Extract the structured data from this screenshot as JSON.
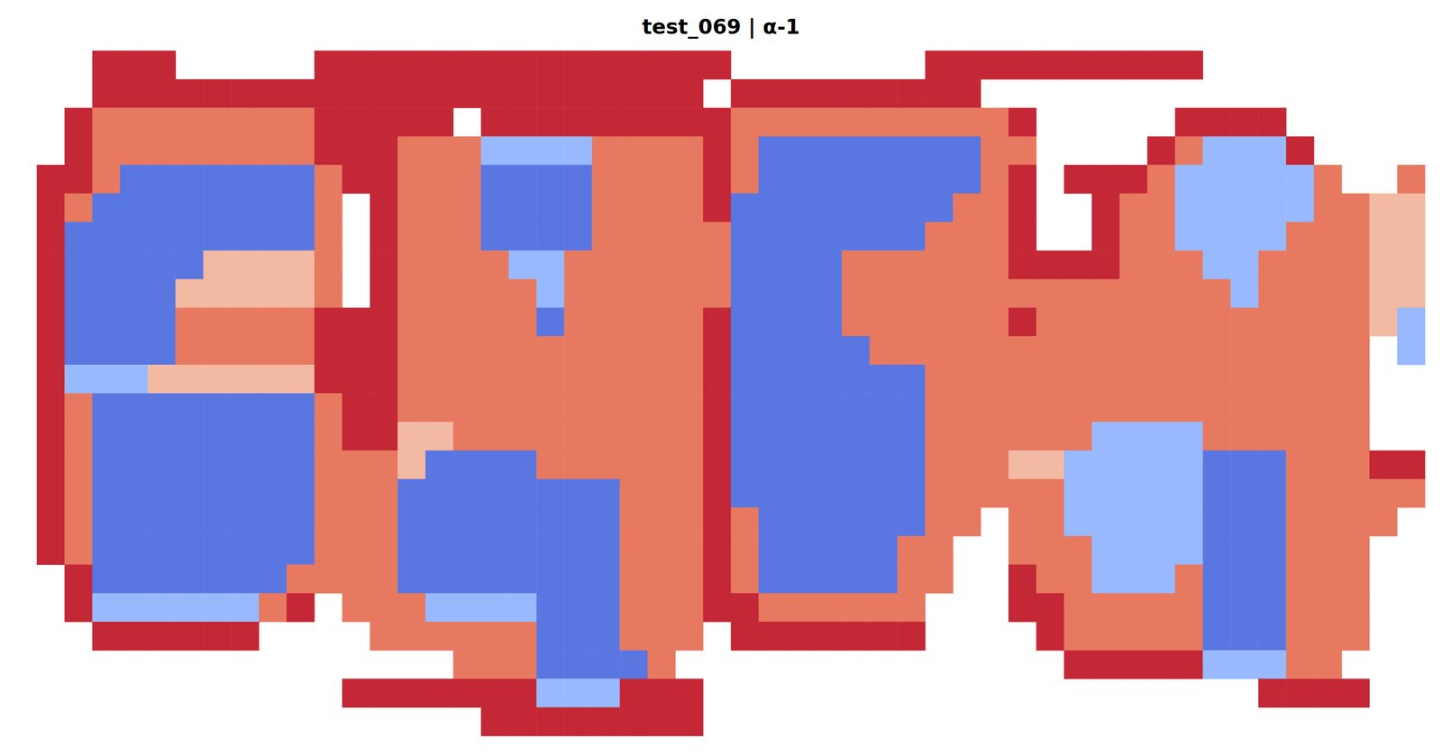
{
  "chart_data": {
    "type": "heatmap",
    "title": "test_069 | α-1",
    "zlim": [
      0,
      1
    ],
    "grid": false,
    "tick_labels": false,
    "cells": [
      [
        null,
        null,
        0.95,
        0.95,
        0.95,
        null,
        null,
        null,
        null,
        null,
        0.95,
        0.95,
        0.95,
        0.95,
        0.95,
        0.95,
        0.95,
        0.95,
        0.95,
        0.95,
        0.95,
        0.95,
        0.95,
        0.95,
        0.95,
        null,
        null,
        null,
        null,
        null,
        null,
        null,
        0.95,
        0.95,
        0.95,
        0.95,
        0.95,
        0.95,
        0.95,
        0.95,
        0.95,
        0.95,
        null,
        null,
        null,
        null,
        null,
        null,
        null,
        null
      ],
      [
        null,
        null,
        0.95,
        0.95,
        0.95,
        0.95,
        0.95,
        0.95,
        0.95,
        0.95,
        0.95,
        0.95,
        0.95,
        0.95,
        0.95,
        0.95,
        0.95,
        0.95,
        0.95,
        0.95,
        0.95,
        0.95,
        0.95,
        0.95,
        null,
        0.95,
        0.95,
        0.95,
        0.95,
        0.95,
        0.95,
        0.95,
        0.95,
        0.95,
        null,
        null,
        null,
        null,
        null,
        null,
        null,
        null,
        null,
        null,
        null,
        null,
        null,
        null,
        null,
        null
      ],
      [
        null,
        0.95,
        0.82,
        0.82,
        0.82,
        0.82,
        0.82,
        0.82,
        0.82,
        0.82,
        0.95,
        0.95,
        0.95,
        0.95,
        0.95,
        null,
        0.95,
        0.95,
        0.95,
        0.95,
        0.95,
        0.95,
        0.95,
        0.95,
        0.95,
        0.82,
        0.82,
        0.82,
        0.82,
        0.82,
        0.82,
        0.82,
        0.82,
        0.82,
        0.82,
        0.95,
        null,
        null,
        null,
        null,
        null,
        0.95,
        0.95,
        0.95,
        0.95,
        null,
        null,
        null,
        null,
        null
      ],
      [
        null,
        0.95,
        0.82,
        0.82,
        0.82,
        0.82,
        0.82,
        0.82,
        0.82,
        0.82,
        0.95,
        0.95,
        0.95,
        0.82,
        0.82,
        0.82,
        0.28,
        0.28,
        0.28,
        0.28,
        0.82,
        0.82,
        0.82,
        0.82,
        0.95,
        0.82,
        0.1,
        0.1,
        0.1,
        0.1,
        0.1,
        0.1,
        0.1,
        0.1,
        0.82,
        0.82,
        null,
        null,
        null,
        null,
        0.95,
        0.82,
        0.28,
        0.28,
        0.28,
        0.95,
        null,
        null,
        null,
        null
      ],
      [
        0.95,
        0.95,
        0.82,
        0.1,
        0.1,
        0.1,
        0.1,
        0.1,
        0.1,
        0.1,
        0.82,
        0.95,
        0.95,
        0.82,
        0.82,
        0.82,
        0.1,
        0.1,
        0.1,
        0.1,
        0.82,
        0.82,
        0.82,
        0.82,
        0.95,
        0.82,
        0.1,
        0.1,
        0.1,
        0.1,
        0.1,
        0.1,
        0.1,
        0.1,
        0.82,
        0.95,
        null,
        0.95,
        0.95,
        0.95,
        0.82,
        0.28,
        0.28,
        0.28,
        0.28,
        0.28,
        0.82,
        null,
        null,
        0.82
      ],
      [
        0.95,
        0.82,
        0.1,
        0.1,
        0.1,
        0.1,
        0.1,
        0.1,
        0.1,
        0.1,
        0.82,
        null,
        0.95,
        0.82,
        0.82,
        0.82,
        0.1,
        0.1,
        0.1,
        0.1,
        0.82,
        0.82,
        0.82,
        0.82,
        0.95,
        0.1,
        0.1,
        0.1,
        0.1,
        0.1,
        0.1,
        0.1,
        0.1,
        0.82,
        0.82,
        0.95,
        null,
        null,
        0.95,
        0.82,
        0.82,
        0.28,
        0.28,
        0.28,
        0.28,
        0.28,
        0.82,
        0.82,
        0.65,
        0.65
      ],
      [
        0.95,
        0.1,
        0.1,
        0.1,
        0.1,
        0.1,
        0.1,
        0.1,
        0.1,
        0.1,
        0.82,
        null,
        0.95,
        0.82,
        0.82,
        0.82,
        0.1,
        0.1,
        0.1,
        0.1,
        0.82,
        0.82,
        0.82,
        0.82,
        0.82,
        0.1,
        0.1,
        0.1,
        0.1,
        0.1,
        0.1,
        0.1,
        0.82,
        0.82,
        0.82,
        0.95,
        null,
        null,
        0.95,
        0.82,
        0.82,
        0.28,
        0.28,
        0.28,
        0.28,
        0.82,
        0.82,
        0.82,
        0.65,
        0.65
      ],
      [
        0.95,
        0.1,
        0.1,
        0.1,
        0.1,
        0.1,
        0.65,
        0.65,
        0.65,
        0.65,
        0.82,
        null,
        0.95,
        0.82,
        0.82,
        0.82,
        0.82,
        0.28,
        0.28,
        0.82,
        0.82,
        0.82,
        0.82,
        0.82,
        0.82,
        0.1,
        0.1,
        0.1,
        0.1,
        0.82,
        0.82,
        0.82,
        0.82,
        0.82,
        0.82,
        0.95,
        0.95,
        0.95,
        0.95,
        0.82,
        0.82,
        0.82,
        0.28,
        0.28,
        0.82,
        0.82,
        0.82,
        0.82,
        0.65,
        0.65
      ],
      [
        0.95,
        0.1,
        0.1,
        0.1,
        0.1,
        0.65,
        0.65,
        0.65,
        0.65,
        0.65,
        0.82,
        null,
        0.95,
        0.82,
        0.82,
        0.82,
        0.82,
        0.82,
        0.28,
        0.82,
        0.82,
        0.82,
        0.82,
        0.82,
        0.82,
        0.1,
        0.1,
        0.1,
        0.1,
        0.82,
        0.82,
        0.82,
        0.82,
        0.82,
        0.82,
        0.82,
        0.82,
        0.82,
        0.82,
        0.82,
        0.82,
        0.82,
        0.82,
        0.28,
        0.82,
        0.82,
        0.82,
        0.82,
        0.65,
        0.65
      ],
      [
        0.95,
        0.1,
        0.1,
        0.1,
        0.1,
        0.82,
        0.82,
        0.82,
        0.82,
        0.82,
        0.95,
        0.95,
        0.95,
        0.82,
        0.82,
        0.82,
        0.82,
        0.82,
        0.1,
        0.82,
        0.82,
        0.82,
        0.82,
        0.82,
        0.95,
        0.1,
        0.1,
        0.1,
        0.1,
        0.82,
        0.82,
        0.82,
        0.82,
        0.82,
        0.82,
        0.95,
        0.82,
        0.82,
        0.82,
        0.82,
        0.82,
        0.82,
        0.82,
        0.82,
        0.82,
        0.82,
        0.82,
        0.82,
        0.65,
        0.28
      ],
      [
        0.95,
        0.1,
        0.1,
        0.1,
        0.1,
        0.82,
        0.82,
        0.82,
        0.82,
        0.82,
        0.95,
        0.95,
        0.95,
        0.82,
        0.82,
        0.82,
        0.82,
        0.82,
        0.82,
        0.82,
        0.82,
        0.82,
        0.82,
        0.82,
        0.95,
        0.1,
        0.1,
        0.1,
        0.1,
        0.1,
        0.82,
        0.82,
        0.82,
        0.82,
        0.82,
        0.82,
        0.82,
        0.82,
        0.82,
        0.82,
        0.82,
        0.82,
        0.82,
        0.82,
        0.82,
        0.82,
        0.82,
        0.82,
        null,
        0.28
      ],
      [
        0.95,
        0.28,
        0.28,
        0.28,
        0.65,
        0.65,
        0.65,
        0.65,
        0.65,
        0.65,
        0.95,
        0.95,
        0.95,
        0.82,
        0.82,
        0.82,
        0.82,
        0.82,
        0.82,
        0.82,
        0.82,
        0.82,
        0.82,
        0.82,
        0.95,
        0.1,
        0.1,
        0.1,
        0.1,
        0.1,
        0.1,
        0.1,
        0.82,
        0.82,
        0.82,
        0.82,
        0.82,
        0.82,
        0.82,
        0.82,
        0.82,
        0.82,
        0.82,
        0.82,
        0.82,
        0.82,
        0.82,
        0.82,
        null,
        null
      ],
      [
        0.95,
        0.82,
        0.1,
        0.1,
        0.1,
        0.1,
        0.1,
        0.1,
        0.1,
        0.1,
        0.82,
        0.95,
        0.95,
        0.82,
        0.82,
        0.82,
        0.82,
        0.82,
        0.82,
        0.82,
        0.82,
        0.82,
        0.82,
        0.82,
        0.95,
        0.1,
        0.1,
        0.1,
        0.1,
        0.1,
        0.1,
        0.1,
        0.82,
        0.82,
        0.82,
        0.82,
        0.82,
        0.82,
        0.82,
        0.82,
        0.82,
        0.82,
        0.82,
        0.82,
        0.82,
        0.82,
        0.82,
        0.82,
        null,
        null
      ],
      [
        0.95,
        0.82,
        0.1,
        0.1,
        0.1,
        0.1,
        0.1,
        0.1,
        0.1,
        0.1,
        0.82,
        0.95,
        0.95,
        0.65,
        0.65,
        0.82,
        0.82,
        0.82,
        0.82,
        0.82,
        0.82,
        0.82,
        0.82,
        0.82,
        0.95,
        0.1,
        0.1,
        0.1,
        0.1,
        0.1,
        0.1,
        0.1,
        0.82,
        0.82,
        0.82,
        0.82,
        0.82,
        0.82,
        0.28,
        0.28,
        0.28,
        0.28,
        0.82,
        0.82,
        0.82,
        0.82,
        0.82,
        0.82,
        null,
        null
      ],
      [
        0.95,
        0.82,
        0.1,
        0.1,
        0.1,
        0.1,
        0.1,
        0.1,
        0.1,
        0.1,
        0.82,
        0.82,
        0.82,
        0.65,
        0.1,
        0.1,
        0.1,
        0.1,
        0.82,
        0.82,
        0.82,
        0.82,
        0.82,
        0.82,
        0.95,
        0.1,
        0.1,
        0.1,
        0.1,
        0.1,
        0.1,
        0.1,
        0.82,
        0.82,
        0.82,
        0.65,
        0.65,
        0.28,
        0.28,
        0.28,
        0.28,
        0.28,
        0.1,
        0.1,
        0.1,
        0.82,
        0.82,
        0.82,
        0.95,
        0.95
      ],
      [
        0.95,
        0.82,
        0.1,
        0.1,
        0.1,
        0.1,
        0.1,
        0.1,
        0.1,
        0.1,
        0.82,
        0.82,
        0.82,
        0.1,
        0.1,
        0.1,
        0.1,
        0.1,
        0.1,
        0.1,
        0.1,
        0.82,
        0.82,
        0.82,
        0.95,
        0.1,
        0.1,
        0.1,
        0.1,
        0.1,
        0.1,
        0.1,
        0.82,
        0.82,
        0.82,
        0.82,
        0.82,
        0.28,
        0.28,
        0.28,
        0.28,
        0.28,
        0.1,
        0.1,
        0.1,
        0.82,
        0.82,
        0.82,
        0.82,
        0.82
      ],
      [
        0.95,
        0.82,
        0.1,
        0.1,
        0.1,
        0.1,
        0.1,
        0.1,
        0.1,
        0.1,
        0.82,
        0.82,
        0.82,
        0.1,
        0.1,
        0.1,
        0.1,
        0.1,
        0.1,
        0.1,
        0.1,
        0.82,
        0.82,
        0.82,
        0.95,
        0.82,
        0.1,
        0.1,
        0.1,
        0.1,
        0.1,
        0.1,
        0.82,
        0.82,
        null,
        0.82,
        0.82,
        0.28,
        0.28,
        0.28,
        0.28,
        0.28,
        0.1,
        0.1,
        0.1,
        0.82,
        0.82,
        0.82,
        0.82,
        null
      ],
      [
        0.95,
        0.82,
        0.1,
        0.1,
        0.1,
        0.1,
        0.1,
        0.1,
        0.1,
        0.1,
        0.82,
        0.82,
        0.82,
        0.1,
        0.1,
        0.1,
        0.1,
        0.1,
        0.1,
        0.1,
        0.1,
        0.82,
        0.82,
        0.82,
        0.95,
        0.82,
        0.1,
        0.1,
        0.1,
        0.1,
        0.1,
        0.82,
        0.82,
        null,
        null,
        0.82,
        0.82,
        0.82,
        0.28,
        0.28,
        0.28,
        0.28,
        0.1,
        0.1,
        0.1,
        0.82,
        0.82,
        0.82,
        null,
        null
      ],
      [
        null,
        0.95,
        0.1,
        0.1,
        0.1,
        0.1,
        0.1,
        0.1,
        0.1,
        0.82,
        0.82,
        0.82,
        0.82,
        0.1,
        0.1,
        0.1,
        0.1,
        0.1,
        0.1,
        0.1,
        0.1,
        0.82,
        0.82,
        0.82,
        0.95,
        0.82,
        0.1,
        0.1,
        0.1,
        0.1,
        0.1,
        0.82,
        0.82,
        null,
        null,
        0.95,
        0.82,
        0.82,
        0.28,
        0.28,
        0.28,
        0.82,
        0.1,
        0.1,
        0.1,
        0.82,
        0.82,
        0.82,
        null,
        null
      ],
      [
        null,
        0.95,
        0.28,
        0.28,
        0.28,
        0.28,
        0.28,
        0.28,
        0.82,
        0.95,
        null,
        0.82,
        0.82,
        0.82,
        0.28,
        0.28,
        0.28,
        0.28,
        0.1,
        0.1,
        0.1,
        0.82,
        0.82,
        0.82,
        0.95,
        0.95,
        0.82,
        0.82,
        0.82,
        0.82,
        0.82,
        0.82,
        null,
        null,
        null,
        0.95,
        0.95,
        0.82,
        0.82,
        0.82,
        0.82,
        0.82,
        0.1,
        0.1,
        0.1,
        0.82,
        0.82,
        0.82,
        null,
        null
      ],
      [
        null,
        null,
        0.95,
        0.95,
        0.95,
        0.95,
        0.95,
        0.95,
        null,
        null,
        null,
        null,
        0.82,
        0.82,
        0.82,
        0.82,
        0.82,
        0.82,
        0.1,
        0.1,
        0.1,
        0.82,
        0.82,
        0.82,
        null,
        0.95,
        0.95,
        0.95,
        0.95,
        0.95,
        0.95,
        0.95,
        null,
        null,
        null,
        null,
        0.95,
        0.82,
        0.82,
        0.82,
        0.82,
        0.82,
        0.1,
        0.1,
        0.1,
        0.82,
        0.82,
        0.82,
        null,
        null
      ],
      [
        null,
        null,
        null,
        null,
        null,
        null,
        null,
        null,
        null,
        null,
        null,
        null,
        null,
        null,
        null,
        0.82,
        0.82,
        0.82,
        0.1,
        0.1,
        0.1,
        0.1,
        0.82,
        null,
        null,
        null,
        null,
        null,
        null,
        null,
        null,
        null,
        null,
        null,
        null,
        null,
        null,
        0.95,
        0.95,
        0.95,
        0.95,
        0.95,
        0.28,
        0.28,
        0.28,
        0.82,
        0.82,
        null,
        null,
        null
      ],
      [
        null,
        null,
        null,
        null,
        null,
        null,
        null,
        null,
        null,
        null,
        null,
        0.95,
        0.95,
        0.95,
        0.95,
        0.95,
        0.95,
        0.95,
        0.28,
        0.28,
        0.28,
        0.95,
        0.95,
        0.95,
        null,
        null,
        null,
        null,
        null,
        null,
        null,
        null,
        null,
        null,
        null,
        null,
        null,
        null,
        null,
        null,
        null,
        null,
        null,
        null,
        0.95,
        0.95,
        0.95,
        0.95,
        null,
        null
      ],
      [
        null,
        null,
        null,
        null,
        null,
        null,
        null,
        null,
        null,
        null,
        null,
        null,
        null,
        null,
        null,
        null,
        0.95,
        0.95,
        0.95,
        0.95,
        0.95,
        0.95,
        0.95,
        0.95,
        null,
        null,
        null,
        null,
        null,
        null,
        null,
        null,
        null,
        null,
        null,
        null,
        null,
        null,
        null,
        null,
        null,
        null,
        null,
        null,
        null,
        null,
        null,
        null,
        null,
        null
      ]
    ]
  }
}
